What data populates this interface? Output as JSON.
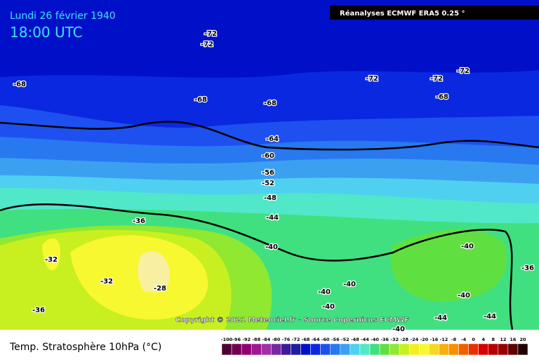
{
  "header": {
    "date": "Lundi 26 février 1940",
    "time": "18:00 UTC",
    "source": "Réanalyses ECMWF ERA5 0.25 °"
  },
  "copyright": "Copyright © 2021 Meteociel.fr - Source Copernicus ECMWF",
  "legend": {
    "title": "Temp. Stratosphère 10hPa (°C)",
    "labels": [
      -100,
      -96,
      -92,
      -88,
      -84,
      -80,
      -76,
      -72,
      -68,
      -64,
      -60,
      -56,
      -52,
      -48,
      -44,
      -40,
      -36,
      -32,
      -28,
      -24,
      -20,
      -16,
      -12,
      -8,
      -4,
      0,
      4,
      8,
      12,
      16,
      20
    ],
    "colors": [
      "#500030",
      "#700050",
      "#900070",
      "#a01890",
      "#a030a8",
      "#7828a0",
      "#3c1c98",
      "#1e1ea0",
      "#0010c8",
      "#0a28e0",
      "#1e50f0",
      "#2878f0",
      "#3ca0f0",
      "#50d0f0",
      "#50e8c8",
      "#40e080",
      "#60e040",
      "#90e830",
      "#c8f020",
      "#f0f020",
      "#f8f830",
      "#f8d820",
      "#f8b010",
      "#f89000",
      "#f06000",
      "#e83000",
      "#d80000",
      "#b80000",
      "#980000",
      "#600000",
      "#200000"
    ]
  },
  "contour_labels": [
    -72,
    -72,
    -72,
    -72,
    -72,
    -68,
    -68,
    -68,
    -68,
    -64,
    -60,
    -56,
    -52,
    -48,
    -44,
    -36,
    -40,
    -32,
    -32,
    -28,
    -36,
    -40,
    -40,
    -40,
    -40,
    -40,
    -44,
    -44,
    -40,
    -36
  ]
}
